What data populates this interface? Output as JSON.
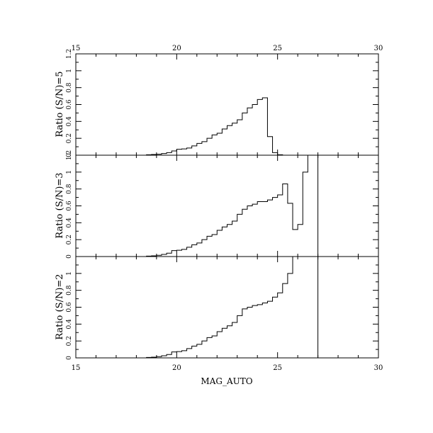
{
  "chart_data": [
    {
      "type": "step",
      "panel": "top",
      "ylabel": "Ratio (S/N)=5",
      "xlim": [
        15,
        30
      ],
      "ylim": [
        0,
        1.2
      ],
      "xticks": [
        15,
        20,
        25,
        30
      ],
      "yticks": [
        "0",
        "0.2",
        "0.4",
        "0.6",
        "0.8",
        "1",
        "1.2"
      ],
      "bin_width": 0.25,
      "x": [
        18.5,
        18.75,
        19.0,
        19.25,
        19.5,
        19.75,
        20.0,
        20.25,
        20.5,
        20.75,
        21.0,
        21.25,
        21.5,
        21.75,
        22.0,
        22.25,
        22.5,
        22.75,
        23.0,
        23.25,
        23.5,
        23.75,
        24.0,
        24.25,
        24.5,
        24.75,
        25.0
      ],
      "values": [
        0.005,
        0.008,
        0.012,
        0.02,
        0.03,
        0.05,
        0.07,
        0.075,
        0.085,
        0.11,
        0.14,
        0.16,
        0.2,
        0.24,
        0.26,
        0.31,
        0.35,
        0.38,
        0.42,
        0.5,
        0.56,
        0.6,
        0.66,
        0.68,
        0.22,
        0.03,
        0.005
      ]
    },
    {
      "type": "step",
      "panel": "middle",
      "ylabel": "Ratio (S/N)=3",
      "xlim": [
        15,
        30
      ],
      "ylim": [
        0,
        1.2
      ],
      "xticks": [
        15,
        20,
        25,
        30
      ],
      "yticks": [
        "0",
        "0.2",
        "0.4",
        "0.6",
        "0.8",
        "1",
        "1.2"
      ],
      "bin_width": 0.25,
      "x": [
        18.5,
        18.75,
        19.0,
        19.25,
        19.5,
        19.75,
        20.0,
        20.25,
        20.5,
        20.75,
        21.0,
        21.25,
        21.5,
        21.75,
        22.0,
        22.25,
        22.5,
        22.75,
        23.0,
        23.25,
        23.5,
        23.75,
        24.0,
        24.25,
        24.5,
        24.75,
        25.0,
        25.25,
        25.5,
        25.75,
        26.0,
        26.25,
        26.5,
        26.75
      ],
      "values": [
        0.005,
        0.008,
        0.015,
        0.025,
        0.04,
        0.07,
        0.075,
        0.085,
        0.11,
        0.14,
        0.16,
        0.2,
        0.24,
        0.26,
        0.31,
        0.35,
        0.38,
        0.42,
        0.5,
        0.56,
        0.6,
        0.62,
        0.65,
        0.65,
        0.67,
        0.7,
        0.73,
        0.86,
        0.63,
        0.32,
        0.38,
        1.0,
        1.2,
        1.2
      ]
    },
    {
      "type": "step",
      "panel": "bottom",
      "ylabel": "Ratio (S/N)=2",
      "xlabel": "MAG_AUTO",
      "xlim": [
        15,
        30
      ],
      "ylim": [
        0,
        1.2
      ],
      "xticks": [
        15,
        20,
        25,
        30
      ],
      "yticks": [
        "0",
        "0.2",
        "0.4",
        "0.6",
        "0.8",
        "1"
      ],
      "bin_width": 0.25,
      "x": [
        18.5,
        18.75,
        19.0,
        19.25,
        19.5,
        19.75,
        20.0,
        20.25,
        20.5,
        20.75,
        21.0,
        21.25,
        21.5,
        21.75,
        22.0,
        22.25,
        22.5,
        22.75,
        23.0,
        23.25,
        23.5,
        23.75,
        24.0,
        24.25,
        24.5,
        24.75,
        25.0,
        25.25,
        25.5,
        25.75,
        26.0,
        26.25,
        26.5,
        26.75,
        27.0
      ],
      "values": [
        0.005,
        0.008,
        0.015,
        0.025,
        0.04,
        0.07,
        0.075,
        0.085,
        0.11,
        0.14,
        0.16,
        0.2,
        0.24,
        0.26,
        0.31,
        0.35,
        0.38,
        0.42,
        0.5,
        0.58,
        0.6,
        0.62,
        0.63,
        0.65,
        0.67,
        0.72,
        0.77,
        0.88,
        1.0,
        1.2,
        1.2,
        1.2,
        1.2,
        1.2,
        0.0
      ]
    }
  ]
}
